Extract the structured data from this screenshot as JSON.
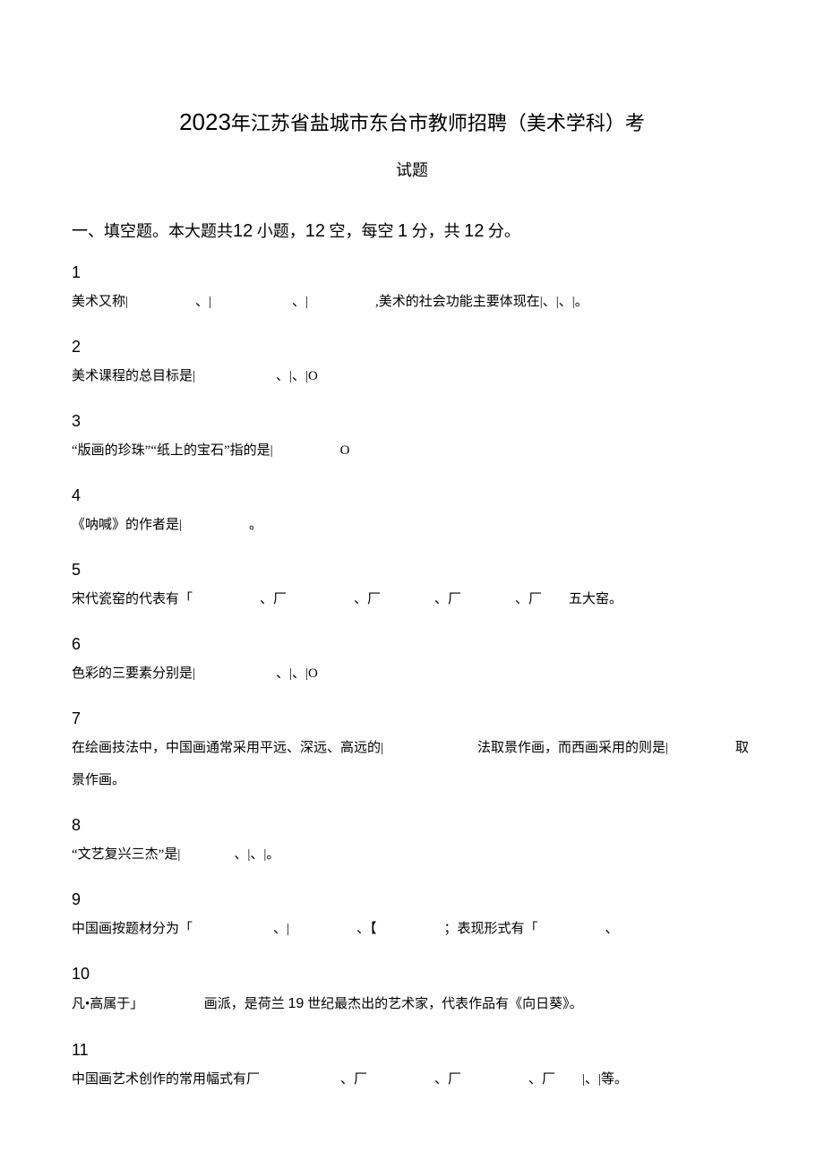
{
  "title": {
    "year": "2023",
    "line1_part1": "年江苏省盐城市东台市教师招聘（美术学科）考",
    "line2": "试题"
  },
  "section_header": {
    "prefix": "一、填空题。本大题共",
    "count1": "12",
    "mid1": " 小题，",
    "count2": "12",
    "mid2": " 空，每空 ",
    "score1": "1",
    "mid3": " 分，共 ",
    "score2": "12",
    "suffix": " 分。"
  },
  "questions": [
    {
      "num": "1",
      "text": "美术又称|　　　　　、|　　　　　　、|　　　　　,美术的社会功能主要体现在|、|、|。"
    },
    {
      "num": "2",
      "text": "美术课程的总目标是|　　　　　　、|、|O"
    },
    {
      "num": "3",
      "text": "“版画的珍珠”“纸上的宝石”指的是|　　　　　O"
    },
    {
      "num": "4",
      "text": "《呐喊》的作者是|　　　　　。"
    },
    {
      "num": "5",
      "text": "宋代瓷窑的代表有「　　　　　、厂　　　　　、厂　　　　、厂　　　　、厂　　五大窑。"
    },
    {
      "num": "6",
      "text": "色彩的三要素分别是|　　　　　　、|、|O"
    },
    {
      "num": "7",
      "text": "在绘画技法中，中国画通常采用平远、深远、高远的|　　　　　　　法取景作画，而西画采用的则是|　　　　　取景作画。"
    },
    {
      "num": "8",
      "text": "“文艺复兴三杰”是|　　　　、|、|。"
    },
    {
      "num": "9",
      "text": "中国画按题材分为「　　　　　　、|　　　　　、【　　　　　；表现形式有「　　　　　、"
    },
    {
      "num": "10",
      "text": "凡•高属于」　　　　　画派，是荷兰 <span class=\"latin\">19</span> 世纪最杰出的艺术家，代表作品有《向日葵》。"
    },
    {
      "num": "11",
      "text": "中国画艺术创作的常用幅式有厂　　　　　　、厂　　　　　、厂　　　　　、厂　　|、|等。"
    }
  ],
  "colors": {
    "background": "#ffffff",
    "text": "#000000"
  },
  "typography": {
    "body_font": "SimSun",
    "latin_font": "Arial",
    "title_fontsize": 22,
    "body_fontsize": 15,
    "qnum_fontsize": 18
  }
}
